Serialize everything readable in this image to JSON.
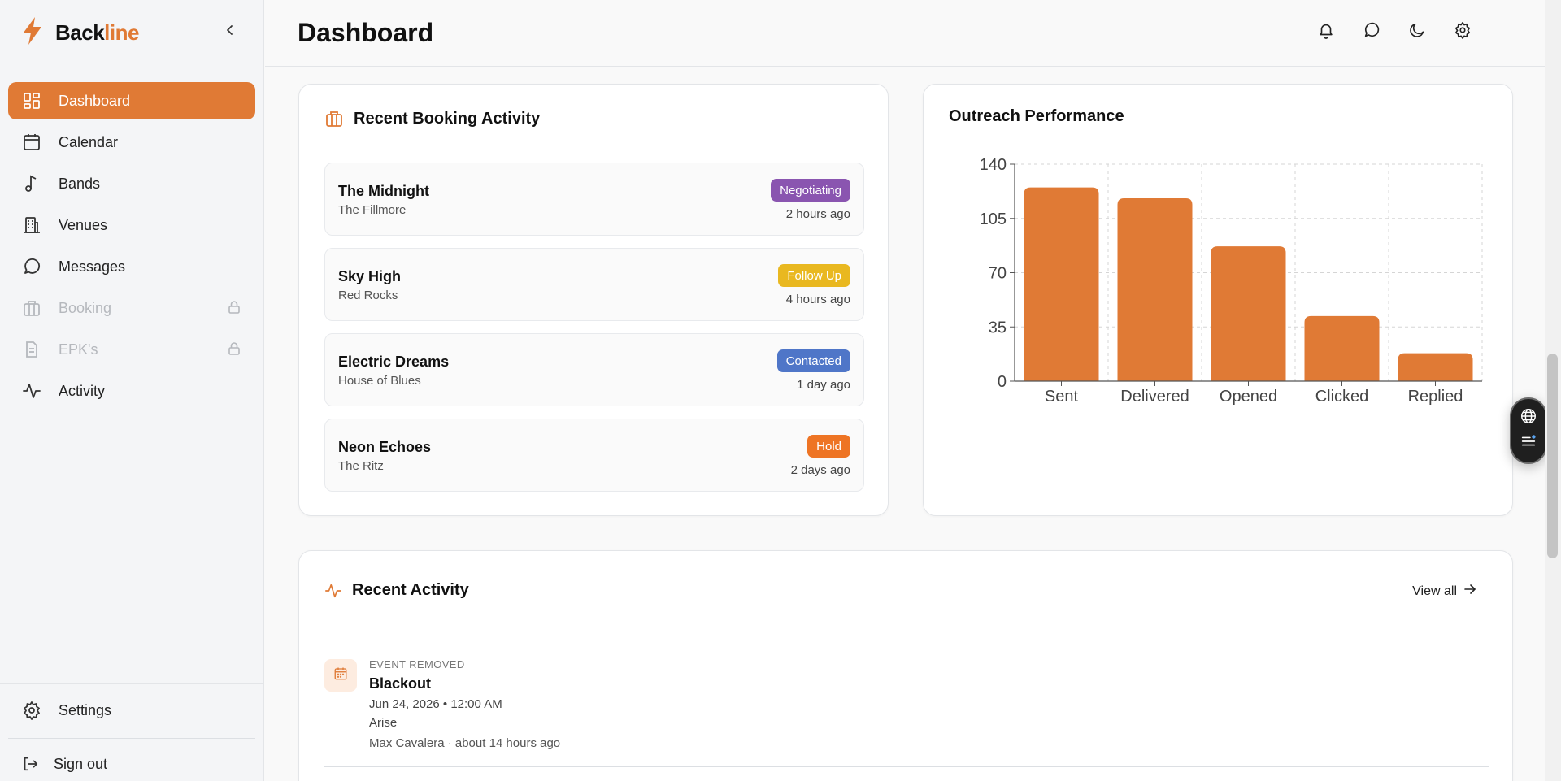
{
  "brand": {
    "name_main": "Back",
    "name_accent": "line",
    "accent_color": "#e07a35"
  },
  "sidebar": {
    "items": [
      {
        "label": "Dashboard",
        "icon": "dashboard-icon",
        "active": true
      },
      {
        "label": "Calendar",
        "icon": "calendar-icon"
      },
      {
        "label": "Bands",
        "icon": "music-note-icon"
      },
      {
        "label": "Venues",
        "icon": "building-icon"
      },
      {
        "label": "Messages",
        "icon": "message-icon"
      },
      {
        "label": "Booking",
        "icon": "briefcase-icon",
        "locked": true
      },
      {
        "label": "EPK's",
        "icon": "document-icon",
        "locked": true
      },
      {
        "label": "Activity",
        "icon": "activity-icon"
      }
    ],
    "settings_label": "Settings",
    "signout_label": "Sign out"
  },
  "header": {
    "title": "Dashboard"
  },
  "booking": {
    "title": "Recent Booking Activity",
    "rows": [
      {
        "name": "The Midnight",
        "venue": "The Fillmore",
        "status": "Negotiating",
        "status_color": "#8a55b0",
        "time": "2 hours ago"
      },
      {
        "name": "Sky High",
        "venue": "Red Rocks",
        "status": "Follow Up",
        "status_color": "#e9b820",
        "time": "4 hours ago"
      },
      {
        "name": "Electric Dreams",
        "venue": "House of Blues",
        "status": "Contacted",
        "status_color": "#4f76c8",
        "time": "1 day ago"
      },
      {
        "name": "Neon Echoes",
        "venue": "The Ritz",
        "status": "Hold",
        "status_color": "#ee7424",
        "time": "2 days ago"
      }
    ]
  },
  "outreach": {
    "title": "Outreach Performance"
  },
  "chart_data": {
    "type": "bar",
    "categories": [
      "Sent",
      "Delivered",
      "Opened",
      "Clicked",
      "Replied"
    ],
    "values": [
      125,
      118,
      87,
      42,
      18
    ],
    "ylim": [
      0,
      140
    ],
    "yticks": [
      0,
      35,
      70,
      105,
      140
    ],
    "grid": true,
    "bar_color": "#e07a35"
  },
  "activity": {
    "title": "Recent Activity",
    "view_all": "View all",
    "events": [
      {
        "type": "EVENT REMOVED",
        "title": "Blackout",
        "date": "Jun 24, 2026 • 12:00 AM",
        "band": "Arise",
        "meta": "Max Cavalera · about 14 hours ago"
      }
    ]
  }
}
